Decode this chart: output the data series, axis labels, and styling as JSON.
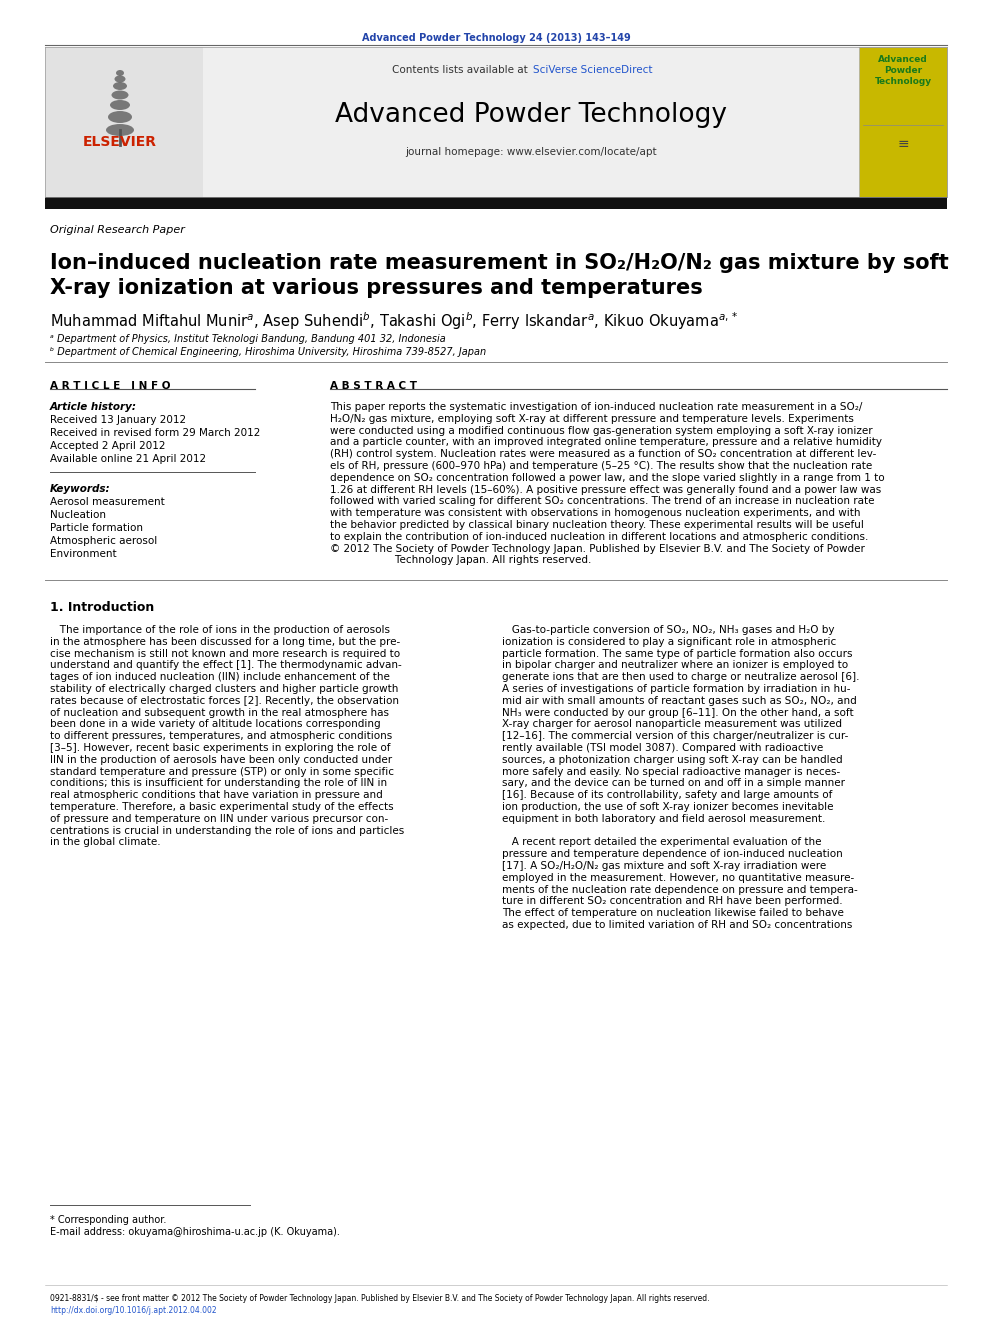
{
  "journal_ref": "Advanced Powder Technology 24 (2013) 143–149",
  "journal_name": "Advanced Powder Technology",
  "journal_homepage": "journal homepage: www.elsevier.com/locate/apt",
  "contents_text": "Contents lists available at ",
  "contents_link": "SciVerse ScienceDirect",
  "paper_type": "Original Research Paper",
  "title_line1": "Ion–induced nucleation rate measurement in SO₂/H₂O/N₂ gas mixture by soft",
  "title_line2": "X-ray ionization at various pressures and temperatures",
  "author_main": "Muhammad Miftahul Munir",
  "author_rest": ", Asep Suhendi",
  "author_b1": ", Takashi Ogi",
  "author_a2": ", Ferry Iskandar",
  "author_last": ", Kikuo Okuyama",
  "affil_a": "ᵃ Department of Physics, Institut Teknologi Bandung, Bandung 401 32, Indonesia",
  "affil_b": "ᵇ Department of Chemical Engineering, Hiroshima University, Hiroshima 739-8527, Japan",
  "article_info_header": "A R T I C L E   I N F O",
  "abstract_header": "A B S T R A C T",
  "article_history_label": "Article history:",
  "received": "Received 13 January 2012",
  "revised": "Received in revised form 29 March 2012",
  "accepted": "Accepted 2 April 2012",
  "available": "Available online 21 April 2012",
  "keywords_label": "Keywords:",
  "keywords": [
    "Aerosol measurement",
    "Nucleation",
    "Particle formation",
    "Atmospheric aerosol",
    "Environment"
  ],
  "abstract_lines": [
    "This paper reports the systematic investigation of ion-induced nucleation rate measurement in a SO₂/",
    "H₂O/N₂ gas mixture, employing soft X-ray at different pressure and temperature levels. Experiments",
    "were conducted using a modified continuous flow gas-generation system employing a soft X-ray ionizer",
    "and a particle counter, with an improved integrated online temperature, pressure and a relative humidity",
    "(RH) control system. Nucleation rates were measured as a function of SO₂ concentration at different lev-",
    "els of RH, pressure (600–970 hPa) and temperature (5–25 °C). The results show that the nucleation rate",
    "dependence on SO₂ concentration followed a power law, and the slope varied slightly in a range from 1 to",
    "1.26 at different RH levels (15–60%). A positive pressure effect was generally found and a power law was",
    "followed with varied scaling for different SO₂ concentrations. The trend of an increase in nucleation rate",
    "with temperature was consistent with observations in homogenous nucleation experiments, and with",
    "the behavior predicted by classical binary nucleation theory. These experimental results will be useful",
    "to explain the contribution of ion-induced nucleation in different locations and atmospheric conditions.",
    "© 2012 The Society of Powder Technology Japan. Published by Elsevier B.V. and The Society of Powder",
    "                    Technology Japan. All rights reserved."
  ],
  "intro_title": "1. Introduction",
  "left_col_lines": [
    "   The importance of the role of ions in the production of aerosols",
    "in the atmosphere has been discussed for a long time, but the pre-",
    "cise mechanism is still not known and more research is required to",
    "understand and quantify the effect [1]. The thermodynamic advan-",
    "tages of ion induced nucleation (IIN) include enhancement of the",
    "stability of electrically charged clusters and higher particle growth",
    "rates because of electrostatic forces [2]. Recently, the observation",
    "of nucleation and subsequent growth in the real atmosphere has",
    "been done in a wide variety of altitude locations corresponding",
    "to different pressures, temperatures, and atmospheric conditions",
    "[3–5]. However, recent basic experiments in exploring the role of",
    "IIN in the production of aerosols have been only conducted under",
    "standard temperature and pressure (STP) or only in some specific",
    "conditions; this is insufficient for understanding the role of IIN in",
    "real atmospheric conditions that have variation in pressure and",
    "temperature. Therefore, a basic experimental study of the effects",
    "of pressure and temperature on IIN under various precursor con-",
    "centrations is crucial in understanding the role of ions and particles",
    "in the global climate."
  ],
  "right_col_lines": [
    "   Gas-to-particle conversion of SO₂, NO₂, NH₃ gases and H₂O by",
    "ionization is considered to play a significant role in atmospheric",
    "particle formation. The same type of particle formation also occurs",
    "in bipolar charger and neutralizer where an ionizer is employed to",
    "generate ions that are then used to charge or neutralize aerosol [6].",
    "A series of investigations of particle formation by irradiation in hu-",
    "mid air with small amounts of reactant gases such as SO₂, NO₂, and",
    "NH₃ were conducted by our group [6–11]. On the other hand, a soft",
    "X-ray charger for aerosol nanoparticle measurement was utilized",
    "[12–16]. The commercial version of this charger/neutralizer is cur-",
    "rently available (TSI model 3087). Compared with radioactive",
    "sources, a photonization charger using soft X-ray can be handled",
    "more safely and easily. No special radioactive manager is neces-",
    "sary, and the device can be turned on and off in a simple manner",
    "[16]. Because of its controllability, safety and large amounts of",
    "ion production, the use of soft X-ray ionizer becomes inevitable",
    "equipment in both laboratory and field aerosol measurement.",
    "",
    "   A recent report detailed the experimental evaluation of the",
    "pressure and temperature dependence of ion-induced nucleation",
    "[17]. A SO₂/H₂O/N₂ gas mixture and soft X-ray irradiation were",
    "employed in the measurement. However, no quantitative measure-",
    "ments of the nucleation rate dependence on pressure and tempera-",
    "ture in different SO₂ concentration and RH have been performed.",
    "The effect of temperature on nucleation likewise failed to behave",
    "as expected, due to limited variation of RH and SO₂ concentrations"
  ],
  "footnote_star": "* Corresponding author.",
  "footnote_email": "E-mail address: okuyama@hiroshima-u.ac.jp (K. Okuyama).",
  "footer_line1": "0921-8831/$ - see front matter © 2012 The Society of Powder Technology Japan. Published by Elsevier B.V. and The Society of Powder Technology Japan. All rights reserved.",
  "footer_line2": "http://dx.doi.org/10.1016/j.apt.2012.04.002",
  "bg_color": "#ffffff",
  "header_bg": "#efefef",
  "journal_ref_color": "#2244aa",
  "link_color": "#2255cc",
  "elsevier_red": "#cc2200",
  "cover_bg": "#c8b800",
  "cover_text_color": "#1a7a1a",
  "black_bar_color": "#111111"
}
